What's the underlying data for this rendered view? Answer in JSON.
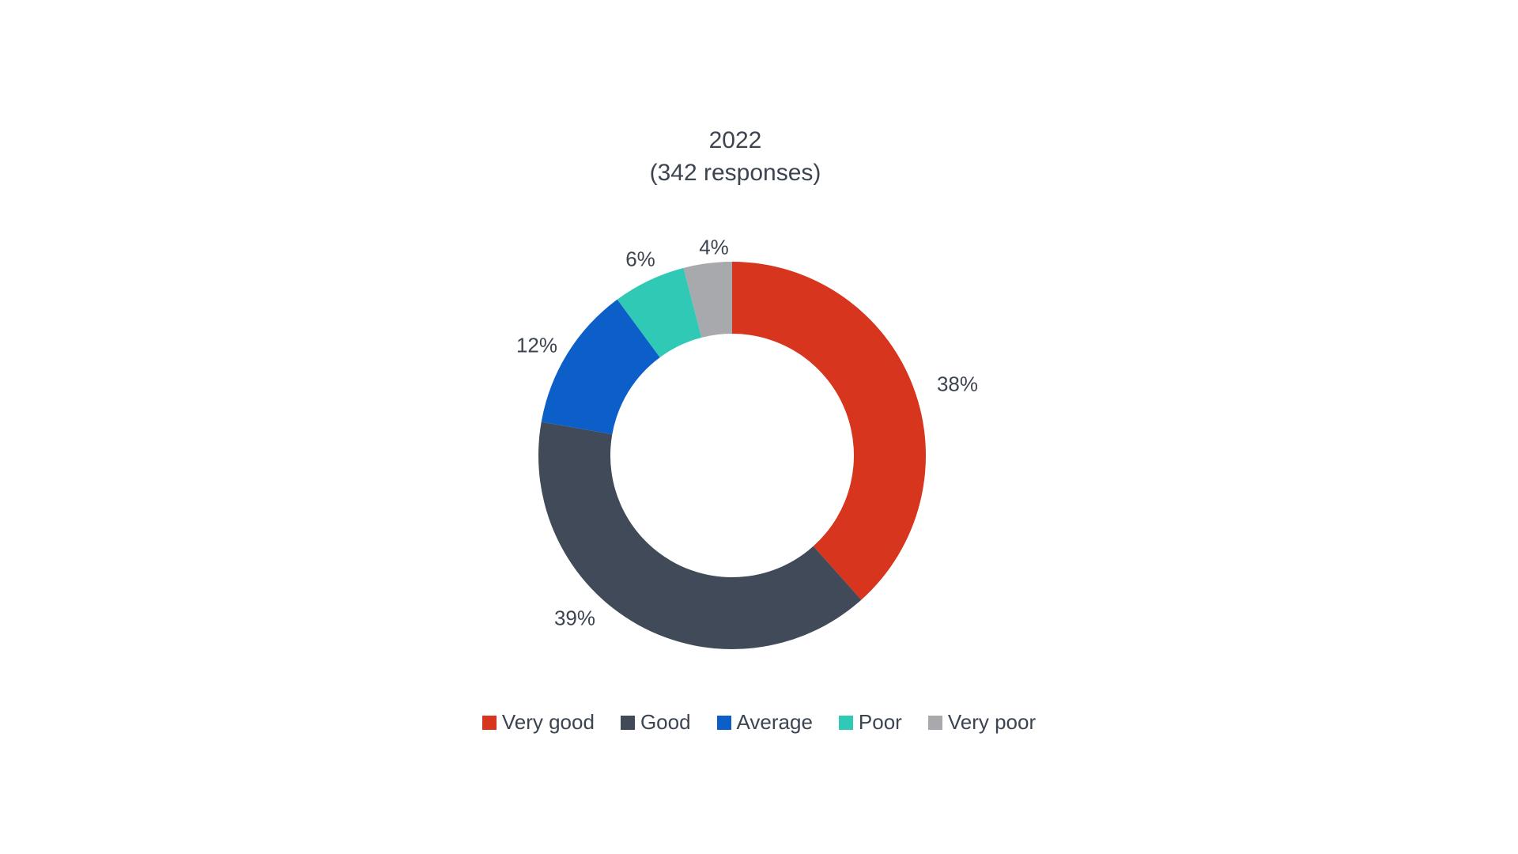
{
  "page": {
    "background_color": "#FFFFFF",
    "text_color": "#3C4450"
  },
  "chart_data": {
    "type": "pie",
    "subtype": "donut",
    "title": "2022",
    "subtitle": "(342 responses)",
    "categories": [
      "Very good",
      "Good",
      "Average",
      "Poor",
      "Very poor"
    ],
    "values": [
      38,
      39,
      12,
      6,
      4
    ],
    "value_labels": [
      "38%",
      "39%",
      "12%",
      "6%",
      "4%"
    ],
    "colors": [
      "#D7351E",
      "#404A58",
      "#0C5FC8",
      "#2FC9B6",
      "#A7A9AC"
    ],
    "legend_position": "bottom",
    "label_position": "outside",
    "donut_hole_ratio": 0.63,
    "start_angle_deg": 0,
    "direction": "clockwise"
  }
}
